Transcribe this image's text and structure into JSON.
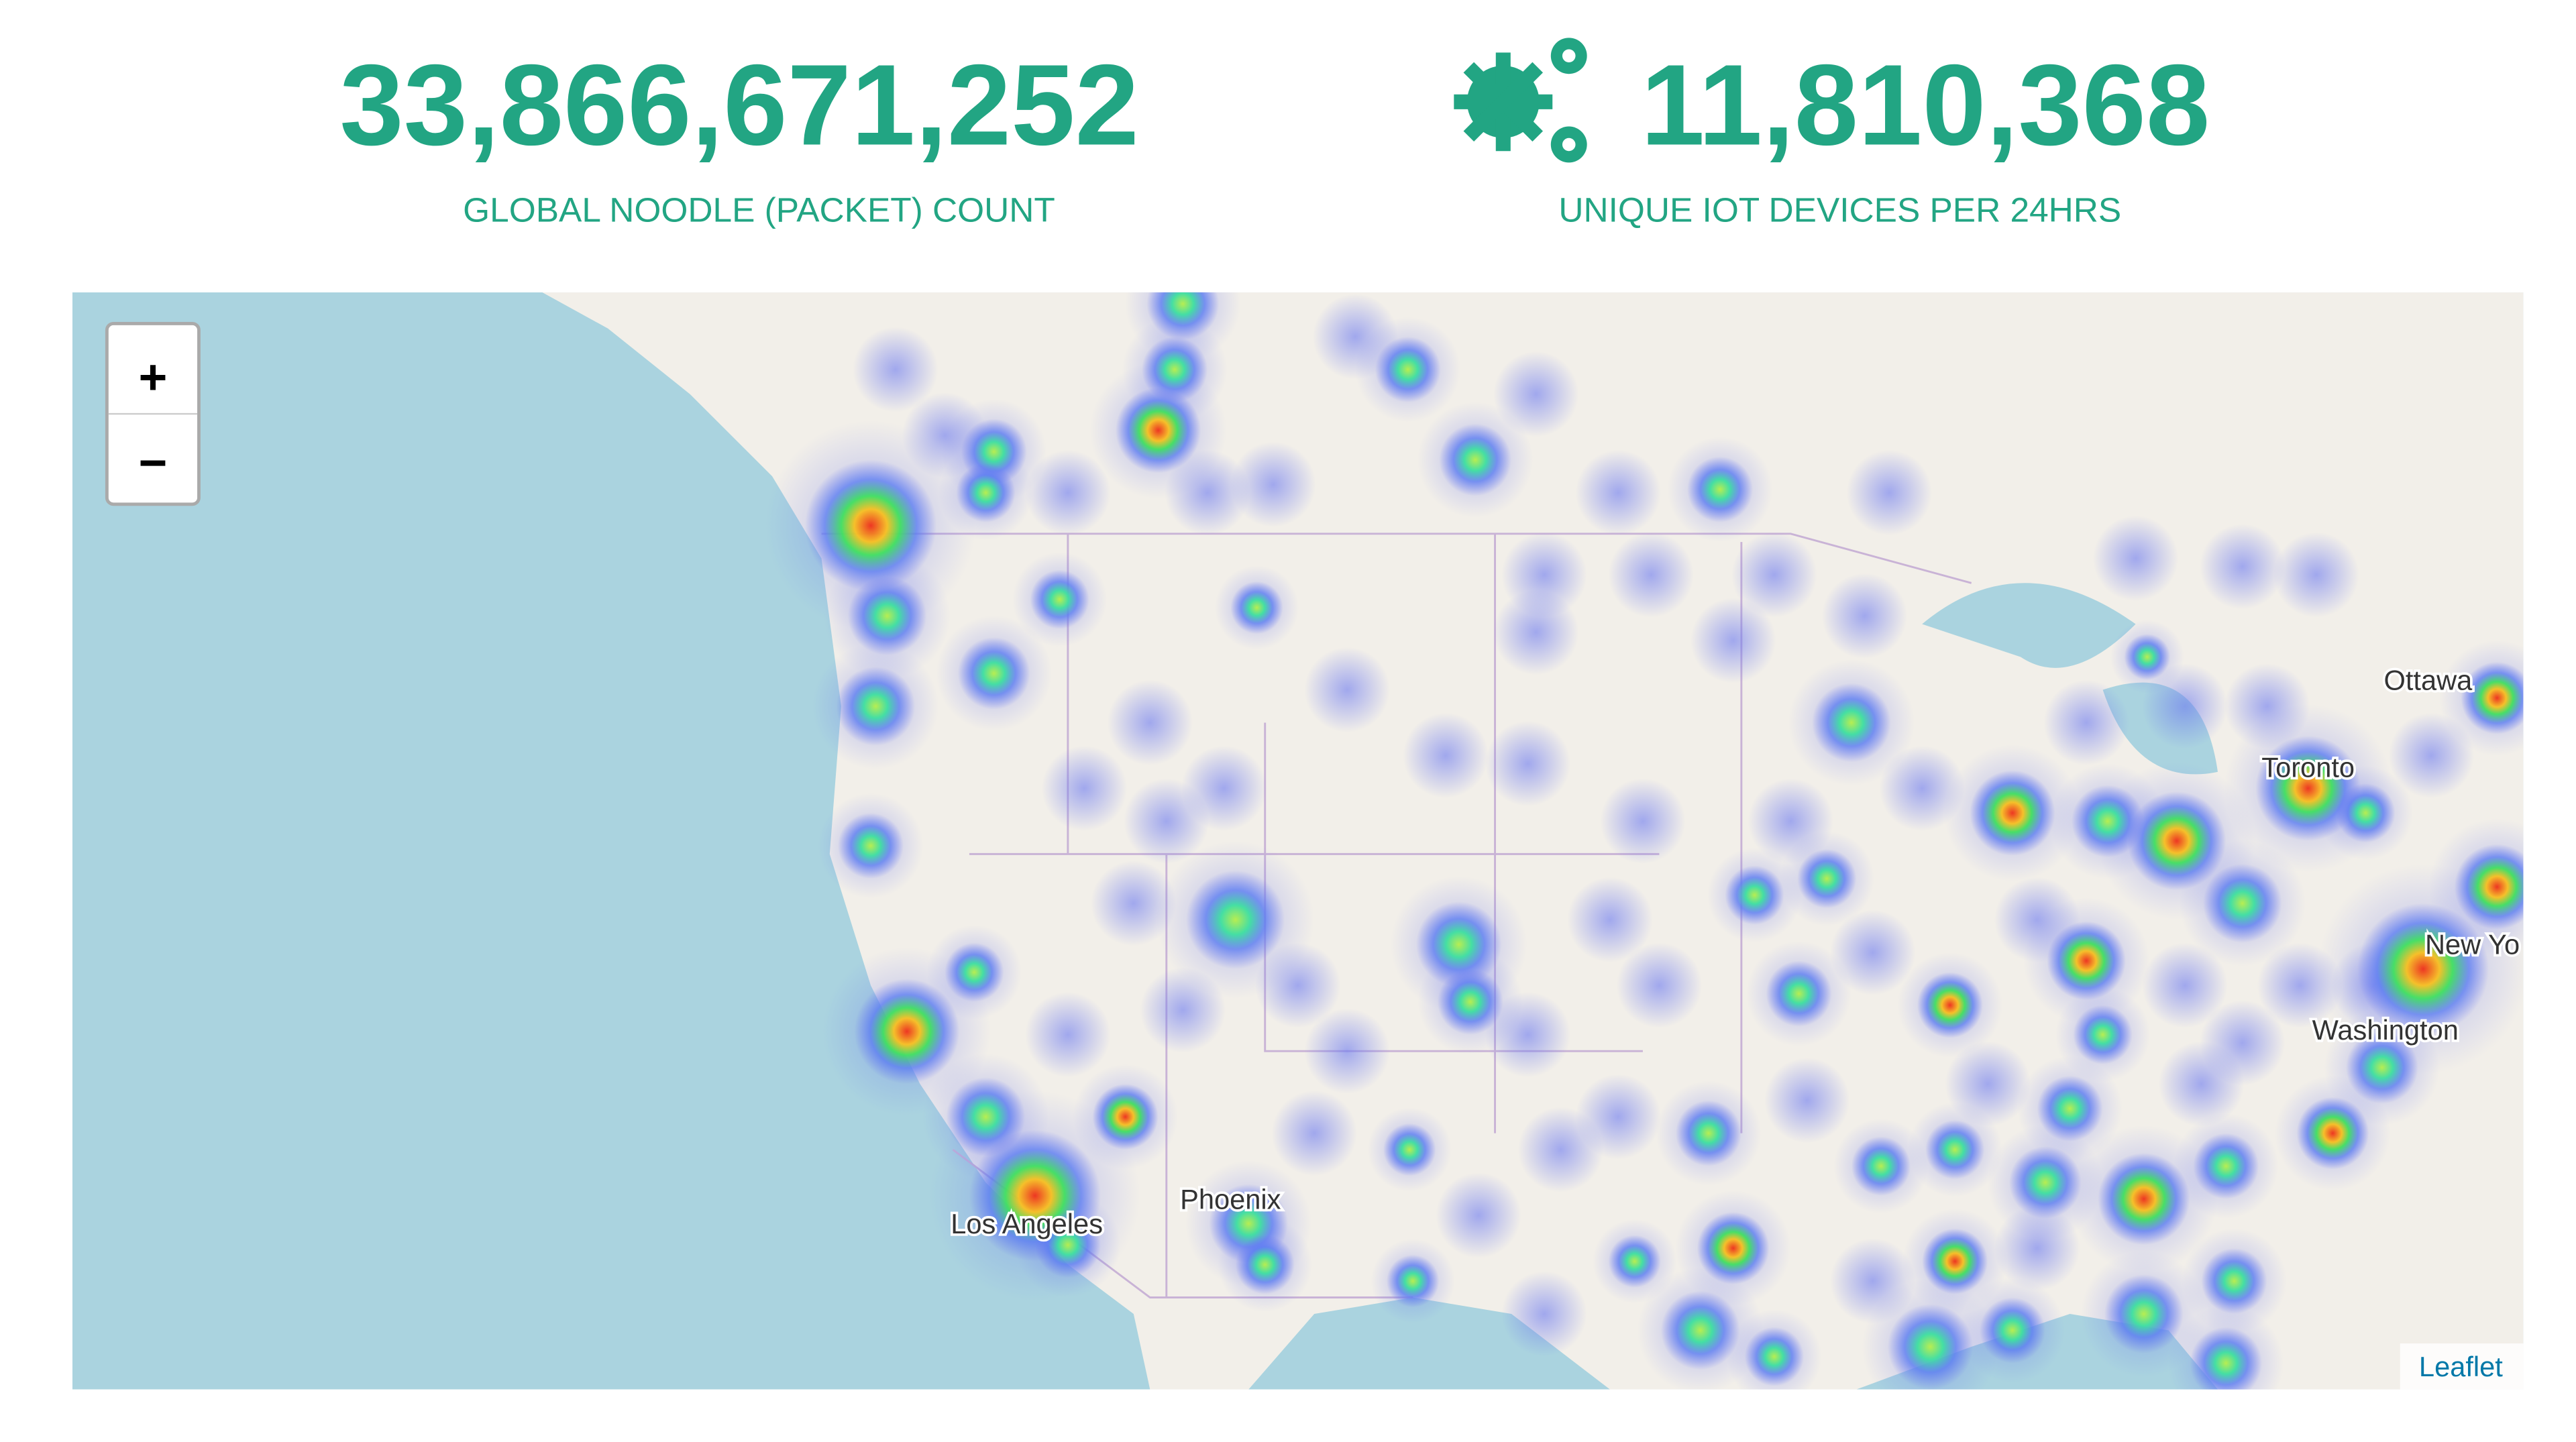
{
  "stats": [
    {
      "value": "33,866,671,252",
      "label": "GLOBAL NOODLE (PACKET) COUNT"
    },
    {
      "value": "11,810,368",
      "label": "UNIQUE IOT DEVICES PER 24HRS"
    }
  ],
  "map": {
    "zoom_in": "+",
    "zoom_out": "−",
    "attribution": "Leaflet",
    "places": [
      "Ottawa",
      "Toronto",
      "New Yo",
      "Washington",
      "Los Angeles",
      "Phoenix"
    ]
  }
}
